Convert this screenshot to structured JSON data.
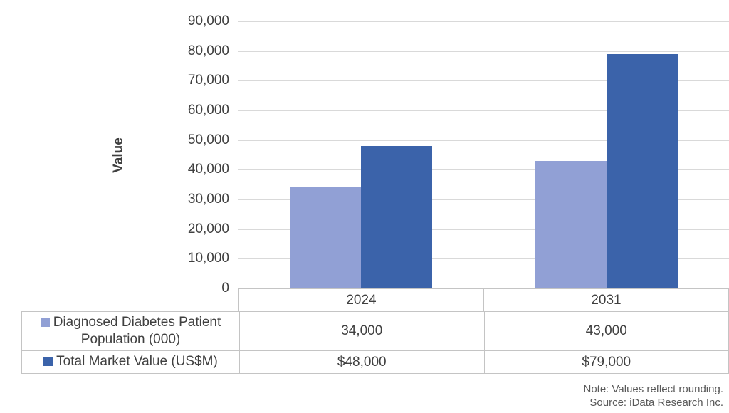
{
  "chart_data": {
    "type": "bar",
    "title": "",
    "categories": [
      "2024",
      "2031"
    ],
    "series": [
      {
        "name": "Diagnosed Diabetes Patient Population (000)",
        "values": [
          34000,
          43000
        ],
        "value_labels": [
          "34,000",
          "43,000"
        ],
        "color": "#91A0D5"
      },
      {
        "name": "Total Market Value (US$M)",
        "values": [
          48000,
          79000
        ],
        "value_labels": [
          "$48,000",
          "$79,000"
        ],
        "color": "#3B63AA"
      }
    ],
    "xlabel": "",
    "ylabel": "Value",
    "ylim": [
      0,
      90000
    ],
    "ytick_step": 10000,
    "grid": true,
    "legend_position": "data-table-left"
  },
  "notes": {
    "line1": "Note: Values reflect rounding.",
    "line2": "Source: iData Research Inc."
  },
  "colors": {
    "series_light": "#91A0D5",
    "series_dark": "#3B63AA",
    "gridline": "#D9D9D9",
    "table_border": "#C4C4C4",
    "axis_text": "#404040",
    "note_text": "#595959"
  }
}
